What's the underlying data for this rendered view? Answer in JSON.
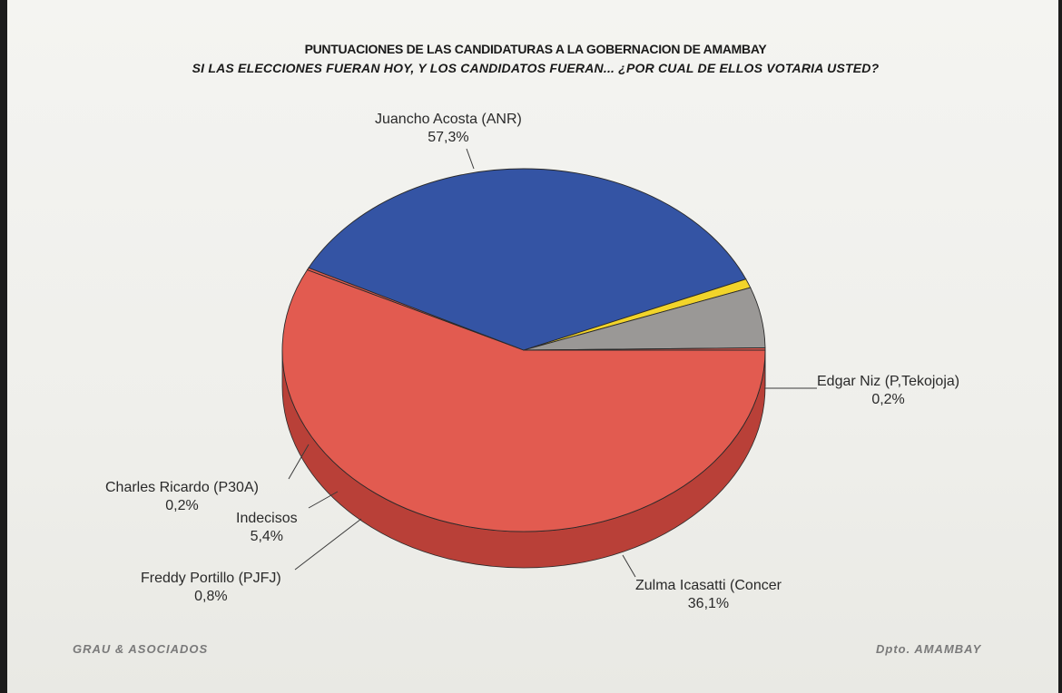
{
  "chart_data": {
    "type": "pie",
    "title": "PUNTUACIONES DE LAS CANDIDATURAS A LA GOBERNACION DE AMAMBAY",
    "subtitle": "SI LAS ELECCIONES FUERAN HOY, Y LOS CANDIDATOS FUERAN... ¿POR CUAL DE ELLOS VOTARIA USTED?",
    "slices": [
      {
        "label": "Juancho Acosta (ANR)",
        "value": 57.3,
        "text": "57,3%",
        "color": "#e25b50",
        "side": "#b94038"
      },
      {
        "label": "Edgar Niz (P,Tekojoja)",
        "value": 0.2,
        "text": "0,2%",
        "color": "#e25b50",
        "side": "#b94038"
      },
      {
        "label": "Zulma Icasatti (Concer",
        "value": 36.1,
        "text": "36,1%",
        "color": "#3454a4",
        "side": "#1e3478"
      },
      {
        "label": "Freddy Portillo (PJFJ)",
        "value": 0.8,
        "text": "0,8%",
        "color": "#f2d42a",
        "side": "#b89a10"
      },
      {
        "label": "Indecisos",
        "value": 5.4,
        "text": "5,4%",
        "color": "#9a9896",
        "side": "#3a3836"
      },
      {
        "label": "Charles Ricardo (P30A)",
        "value": 0.2,
        "text": "0,2%",
        "color": "#e25b50",
        "side": "#b94038"
      }
    ]
  },
  "footer": {
    "left": "GRAU & ASOCIADOS",
    "right": "Dpto. AMAMBAY"
  }
}
